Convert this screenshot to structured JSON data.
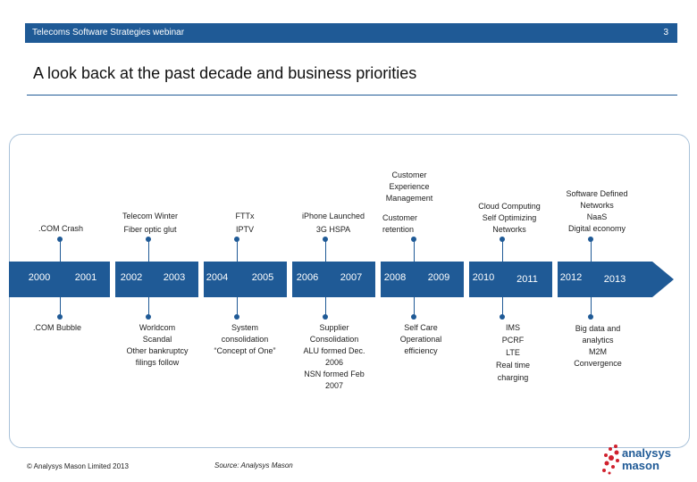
{
  "header": {
    "title": "Telecoms Software Strategies webinar",
    "page_number": "3"
  },
  "slide_title": "A look back at the past decade and business priorities",
  "timeline": {
    "years": [
      "2000",
      "2001",
      "2002",
      "2003",
      "2004",
      "2005",
      "2006",
      "2007",
      "2008",
      "2009",
      "2010",
      "2011",
      "2012",
      "2013"
    ],
    "events_above": [
      {
        "name": "dotcom-crash",
        "lines": [
          ".COM Crash"
        ]
      },
      {
        "name": "telecom-winter",
        "lines": [
          "Telecom Winter",
          "Fiber optic glut"
        ]
      },
      {
        "name": "fttx-iptv",
        "lines": [
          "FTTx",
          "IPTV"
        ]
      },
      {
        "name": "iphone-launched",
        "lines": [
          "iPhone Launched",
          "3G HSPA"
        ]
      },
      {
        "name": "customer-experience",
        "lines": [
          "Customer",
          "Experience",
          "Management"
        ]
      },
      {
        "name": "customer-retention",
        "lines": [
          "Customer",
          "retention"
        ]
      },
      {
        "name": "cloud-computing",
        "lines": [
          "Cloud Computing",
          "Self Optimizing",
          "Networks"
        ]
      },
      {
        "name": "software-defined",
        "lines": [
          "Software Defined",
          "Networks",
          "NaaS",
          "Digital economy"
        ]
      }
    ],
    "events_below": [
      {
        "name": "dotcom-bubble",
        "lines": [
          ".COM Bubble"
        ]
      },
      {
        "name": "worldcom-scandal",
        "lines": [
          "Worldcom",
          "Scandal",
          "Other bankruptcy",
          "filings follow"
        ]
      },
      {
        "name": "system-consolidation",
        "lines": [
          "System",
          "consolidation",
          "“Concept of One”"
        ]
      },
      {
        "name": "supplier-consolidation",
        "lines": [
          "Supplier",
          "Consolidation",
          "ALU formed Dec.",
          "2006",
          "NSN formed Feb",
          "2007"
        ]
      },
      {
        "name": "self-care",
        "lines": [
          "Self Care",
          "Operational",
          "efficiency"
        ]
      },
      {
        "name": "ims-pcrf",
        "lines": [
          "IMS",
          "PCRF",
          "LTE",
          "Real time",
          "charging"
        ]
      },
      {
        "name": "big-data",
        "lines": [
          "Big data and",
          "analytics",
          "M2M",
          "Convergence"
        ]
      }
    ]
  },
  "footer": {
    "copyright": "© Analysys Mason Limited 2013",
    "source": "Source: Analysys Mason",
    "logo_line1": "analysys",
    "logo_line2": "mason"
  },
  "colors": {
    "primary": "#1f5a96",
    "frame": "#a9c2d9",
    "logo_dots": "#d0202d"
  }
}
